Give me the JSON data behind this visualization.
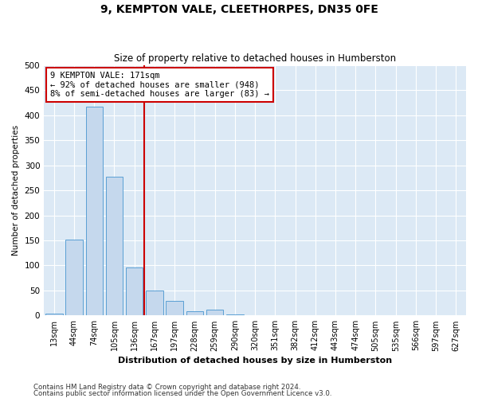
{
  "title": "9, KEMPTON VALE, CLEETHORPES, DN35 0FE",
  "subtitle": "Size of property relative to detached houses in Humberston",
  "xlabel": "Distribution of detached houses by size in Humberston",
  "ylabel": "Number of detached properties",
  "bar_color": "#c5d8ed",
  "bar_edge_color": "#5a9fd4",
  "vline_color": "#cc0000",
  "vline_index": 5,
  "annotation_text": "9 KEMPTON VALE: 171sqm\n← 92% of detached houses are smaller (948)\n8% of semi-detached houses are larger (83) →",
  "annotation_box_color": "#ffffff",
  "annotation_box_edge": "#cc0000",
  "categories": [
    "13sqm",
    "44sqm",
    "74sqm",
    "105sqm",
    "136sqm",
    "167sqm",
    "197sqm",
    "228sqm",
    "259sqm",
    "290sqm",
    "320sqm",
    "351sqm",
    "382sqm",
    "412sqm",
    "443sqm",
    "474sqm",
    "505sqm",
    "535sqm",
    "566sqm",
    "597sqm",
    "627sqm"
  ],
  "values": [
    3,
    152,
    418,
    277,
    96,
    50,
    29,
    8,
    11,
    2,
    0,
    0,
    0,
    0,
    0,
    0,
    0,
    0,
    0,
    0,
    0
  ],
  "ylim": [
    0,
    500
  ],
  "yticks": [
    0,
    50,
    100,
    150,
    200,
    250,
    300,
    350,
    400,
    450,
    500
  ],
  "background_color": "#dce9f5",
  "grid_color": "#ffffff",
  "footer1": "Contains HM Land Registry data © Crown copyright and database right 2024.",
  "footer2": "Contains public sector information licensed under the Open Government Licence v3.0."
}
